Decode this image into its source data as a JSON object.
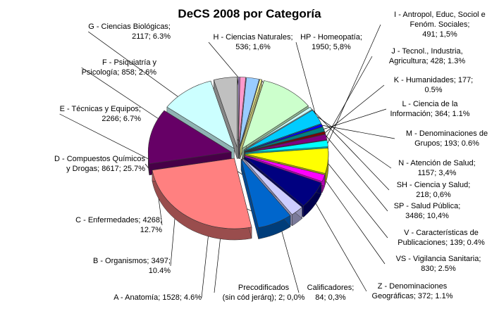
{
  "chart_data": {
    "type": "pie",
    "title": "DeCS 2008 por Categoría",
    "slices": [
      {
        "label": "A - Anatomía; 1528; 4.6%",
        "category": "A - Anatomía",
        "value": 1528,
        "percent": 4.6,
        "color": "#c0c0c0"
      },
      {
        "label": "B - Organismos; 3497;\n10.4%",
        "category": "B - Organismos",
        "value": 3497,
        "percent": 10.4,
        "color": "#ccffff"
      },
      {
        "label": "C - Enfermedades; 4268;\n12.7%",
        "category": "C - Enfermedades",
        "value": 4268,
        "percent": 12.7,
        "color": "#660066"
      },
      {
        "label": "D - Compuestos Químicos\ny Drogas; 8617; 25.7%",
        "category": "D - Compuestos Químicos y Drogas",
        "value": 8617,
        "percent": 25.7,
        "color": "#ff8080"
      },
      {
        "label": "E - Técnicas y Equipos;\n2266; 6.7%",
        "category": "E - Técnicas y Equipos",
        "value": 2266,
        "percent": 6.7,
        "color": "#0066cc"
      },
      {
        "label": "F - Psiquiatría y\nPsicología; 858; 2.6%",
        "category": "F - Psiquiatría y Psicología",
        "value": 858,
        "percent": 2.6,
        "color": "#ccccff"
      },
      {
        "label": "G - Ciencias Biológicas;\n2117; 6.3%",
        "category": "G - Ciencias Biológicas",
        "value": 2117,
        "percent": 6.3,
        "color": "#000080"
      },
      {
        "label": "H - Ciencias Naturales;\n536; 1,6%",
        "category": "H - Ciencias Naturales",
        "value": 536,
        "percent": 1.6,
        "color": "#ff00ff"
      },
      {
        "label": "HP - Homeopatía;\n1950; 5,8%",
        "category": "HP - Homeopatía",
        "value": 1950,
        "percent": 5.8,
        "color": "#ffff00"
      },
      {
        "label": "I - Antropol, Educ, Sociol e\nFenóm. Sociales;\n491; 1,5%",
        "category": "I - Antropol, Educ, Sociol e Fenóm. Sociales",
        "value": 491,
        "percent": 1.5,
        "color": "#00ffff"
      },
      {
        "label": "J - Tecnol., Industria,\nAgricultura; 428; 1.3%",
        "category": "J - Tecnol., Industria, Agricultura",
        "value": 428,
        "percent": 1.3,
        "color": "#800080"
      },
      {
        "label": "K - Humanidades; 177;\n0.5%",
        "category": "K - Humanidades",
        "value": 177,
        "percent": 0.5,
        "color": "#800000"
      },
      {
        "label": "L - Ciencia de la\nInformación; 364; 1.1%",
        "category": "L - Ciencia de la Información",
        "value": 364,
        "percent": 1.1,
        "color": "#008080"
      },
      {
        "label": "M - Denominaciones de\nGrupos; 193; 0.6%",
        "category": "M - Denominaciones de Grupos",
        "value": 193,
        "percent": 0.6,
        "color": "#0000ff"
      },
      {
        "label": "N - Atención de Salud;\n1157; 3,4%",
        "category": "N - Atención de Salud",
        "value": 1157,
        "percent": 3.4,
        "color": "#00ccff"
      },
      {
        "label": "SH - Ciencia y Salud;\n218; 0,6%",
        "category": "SH - Ciencia y Salud",
        "value": 218,
        "percent": 0.6,
        "color": "#ccffff"
      },
      {
        "label": "SP - Salud Pública;\n3486; 10,4%",
        "category": "SP - Salud Pública",
        "value": 3486,
        "percent": 10.4,
        "color": "#ccffcc"
      },
      {
        "label": "V - Características de\nPublicaciones; 139; 0.4%",
        "category": "V - Características de Publicaciones",
        "value": 139,
        "percent": 0.4,
        "color": "#ffff99"
      },
      {
        "label": "VS - Vigilancia Sanitaria;\n830; 2.5%",
        "category": "VS - Vigilancia Sanitaria",
        "value": 830,
        "percent": 2.5,
        "color": "#99ccff"
      },
      {
        "label": "Z - Denominaciones\nGeográficas; 372; 1.1%",
        "category": "Z - Denominaciones Geográficas",
        "value": 372,
        "percent": 1.1,
        "color": "#ff99cc"
      },
      {
        "label": "Calificadores;\n84; 0,3%",
        "category": "Calificadores",
        "value": 84,
        "percent": 0.3,
        "color": "#cc99ff"
      },
      {
        "label": "Precodificados\n(sin cód jerárq); 2; 0,0%",
        "category": "Precodificados (sin cód jerárq)",
        "value": 2,
        "percent": 0.0,
        "color": "#ffcc99"
      }
    ]
  }
}
